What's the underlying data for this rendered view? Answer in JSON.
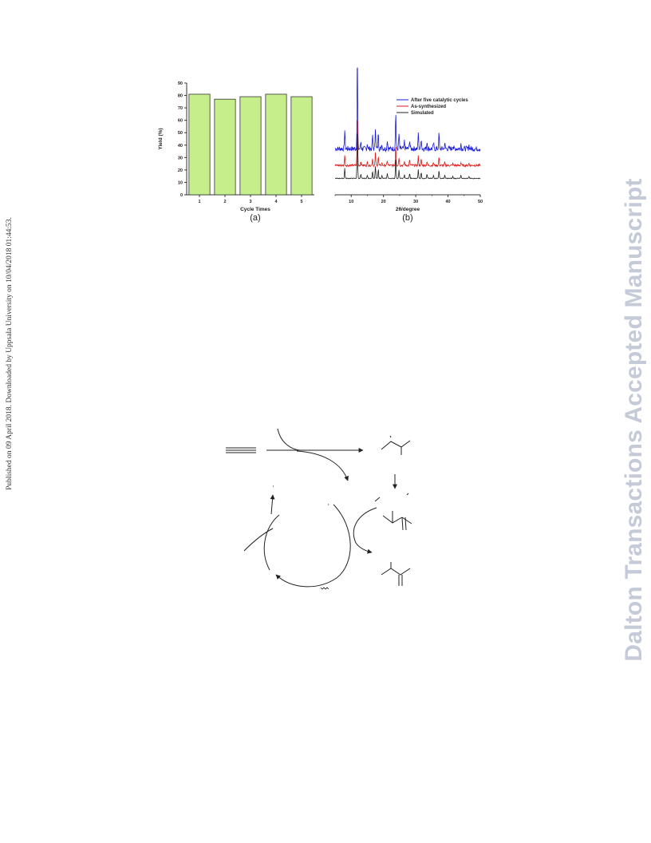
{
  "sidebar": {
    "text": "Published on 09 April 2018. Downloaded by Uppsala University on 10/04/2018 01:44:53."
  },
  "watermark": {
    "text": "Dalton Transactions Accepted Manuscript"
  },
  "chart_data": [
    {
      "type": "bar",
      "panel_label": "(a)",
      "categories": [
        "1",
        "2",
        "3",
        "4",
        "5"
      ],
      "values": [
        81,
        77,
        79,
        81,
        79
      ],
      "xlabel": "Cycle Times",
      "ylabel": "Yield (%)",
      "ylim": [
        0,
        90
      ],
      "yticks": [
        "0",
        "10",
        "20",
        "30",
        "40",
        "50",
        "60",
        "70",
        "80",
        "90"
      ],
      "bar_color": "#c6ef8c",
      "grid": false
    },
    {
      "type": "line",
      "panel_label": "(b)",
      "xlabel": "2θ/degree",
      "xlim": [
        5,
        50
      ],
      "xticks": [
        "10",
        "20",
        "30",
        "40",
        "50"
      ],
      "legend_position": "top-right",
      "legend": [
        "After five catalytic cycles",
        "As-synthesized",
        "Simulated"
      ],
      "series": [
        {
          "name": "After five catalytic cycles",
          "color": "#1a1adc",
          "baseline": 24,
          "noise": 1.4
        },
        {
          "name": "As-synthesized",
          "color": "#dd1a1a",
          "baseline": 15,
          "noise": 0.6
        },
        {
          "name": "Simulated",
          "color": "#222222",
          "baseline": 8,
          "noise": 0.2
        }
      ],
      "peaks_2theta": [
        8.0,
        11.9,
        13.0,
        15.0,
        16.6,
        17.5,
        18.4,
        19.5,
        21.2,
        23.8,
        24.8,
        26.5,
        28.1,
        30.8,
        31.7,
        33.5,
        35.5,
        37.2,
        39.0,
        41.5,
        44.0,
        46.5
      ],
      "peaks_height": [
        10,
        52,
        4,
        3,
        7,
        12,
        9,
        3,
        5,
        20,
        8,
        4,
        5,
        9,
        6,
        4,
        3,
        8,
        3,
        2,
        3,
        2
      ]
    }
  ]
}
